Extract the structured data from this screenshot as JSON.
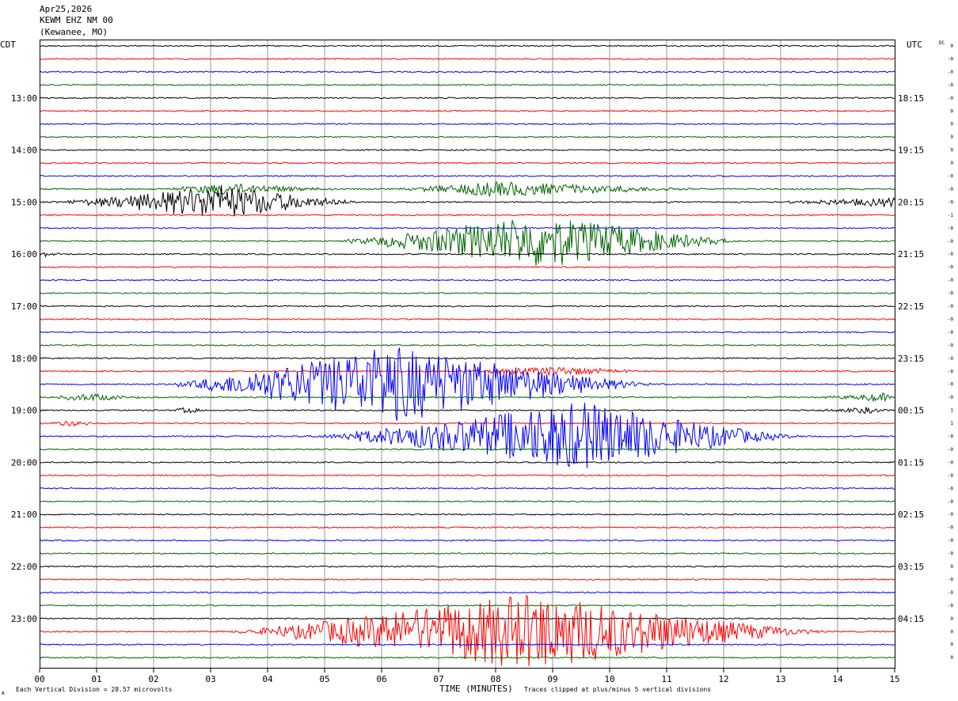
{
  "header": {
    "date": "Apr25,2026",
    "station": "KEWM EHZ NM 00",
    "location": "(Kewanee, MO)"
  },
  "left_tz": "CDT",
  "right_tz": "UTC",
  "dc_label": "DC",
  "footer": {
    "scale": "Each Vertical Division =   28.57 microvolts",
    "clip": "Traces clipped at plus/minus 5 vertical divisions",
    "mark": "A"
  },
  "chart_data": {
    "type": "line",
    "xlabel": "TIME (MINUTES)",
    "xlim": [
      0,
      15
    ],
    "x_ticks": [
      "00",
      "01",
      "02",
      "03",
      "04",
      "05",
      "06",
      "07",
      "08",
      "09",
      "10",
      "11",
      "12",
      "13",
      "14",
      "15"
    ],
    "left_hour_labels": [
      "13:00",
      "14:00",
      "15:00",
      "16:00",
      "17:00",
      "18:00",
      "19:00",
      "20:00",
      "21:00",
      "22:00",
      "23:00"
    ],
    "right_hour_labels": [
      "18:15",
      "19:15",
      "20:15",
      "21:15",
      "22:15",
      "23:15",
      "00:15",
      "01:15",
      "02:15",
      "03:15",
      "04:15"
    ],
    "trace_colors": [
      "#000000",
      "#ff0000",
      "#0000ff",
      "#006400"
    ],
    "dc_offsets": [
      "0",
      "-0",
      "-0",
      "-0",
      "-0",
      "0",
      "0",
      "0",
      "0",
      "0",
      "-0",
      "-0",
      "-0",
      "-1",
      "-0",
      "-0",
      "-0",
      "-0",
      "-0",
      "-0",
      "-0",
      "-0",
      "-0",
      "-0",
      "-0",
      "-0",
      "-0",
      "-0",
      "1",
      "1",
      "-0",
      "-0",
      "-0",
      "-0",
      "-0",
      "-0",
      "-0",
      "-0",
      "-0",
      "-0",
      "0",
      "-0",
      "-0",
      "-0",
      "0",
      "0",
      "0",
      "0"
    ],
    "events": [
      {
        "trace": 11,
        "start": 2.0,
        "peak": 3.2,
        "end": 5.5,
        "amp": 0.8
      },
      {
        "trace": 12,
        "start": 0.0,
        "peak": 3.2,
        "end": 5.8,
        "amp": 2.2
      },
      {
        "trace": 15,
        "start": 5.0,
        "peak": 8.8,
        "end": 12.5,
        "amp": 3.5
      },
      {
        "trace": 11,
        "start": 6.0,
        "peak": 8.0,
        "end": 12.0,
        "amp": 1.0
      },
      {
        "trace": 12,
        "start": 12.5,
        "peak": 15.0,
        "end": 15.0,
        "amp": 0.6
      },
      {
        "trace": 16,
        "start": 0.0,
        "peak": 0.1,
        "end": 0.5,
        "amp": 0.3
      },
      {
        "trace": 26,
        "start": 2.0,
        "peak": 6.2,
        "end": 11.0,
        "amp": 5.0
      },
      {
        "trace": 25,
        "start": 7.0,
        "peak": 9.0,
        "end": 11.0,
        "amp": 0.6
      },
      {
        "trace": 27,
        "start": 0.0,
        "peak": 0.8,
        "end": 2.0,
        "amp": 0.5
      },
      {
        "trace": 27,
        "start": 13.5,
        "peak": 14.8,
        "end": 15.0,
        "amp": 0.6
      },
      {
        "trace": 28,
        "start": 2.2,
        "peak": 2.6,
        "end": 3.0,
        "amp": 0.4
      },
      {
        "trace": 28,
        "start": 13.5,
        "peak": 14.5,
        "end": 15.0,
        "amp": 0.4
      },
      {
        "trace": 29,
        "start": 0.0,
        "peak": 0.5,
        "end": 1.2,
        "amp": 0.4
      },
      {
        "trace": 30,
        "start": 4.5,
        "peak": 9.5,
        "end": 13.5,
        "amp": 4.5
      },
      {
        "trace": 45,
        "start": 3.0,
        "peak": 8.6,
        "end": 14.0,
        "amp": 5.0
      }
    ]
  }
}
